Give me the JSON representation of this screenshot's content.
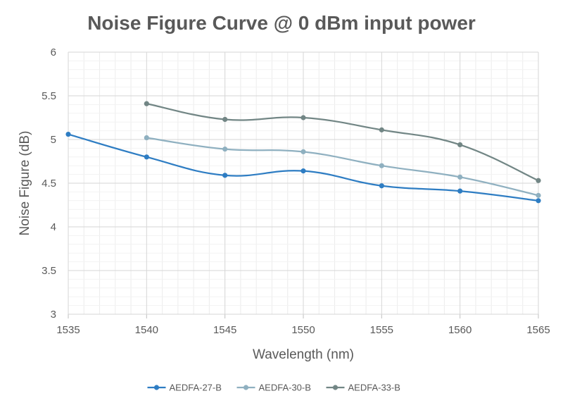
{
  "chart_data": {
    "type": "line",
    "title": "Noise Figure Curve @ 0 dBm input power",
    "xlabel": "Wavelength (nm)",
    "ylabel": "Noise Figure (dB)",
    "xlim": [
      1535,
      1565
    ],
    "ylim": [
      3,
      6
    ],
    "xticks": [
      "1535",
      "1540",
      "1545",
      "1550",
      "1555",
      "1560",
      "1565"
    ],
    "yticks": [
      "3",
      "3.5",
      "4",
      "4.5",
      "5",
      "5.5",
      "6"
    ],
    "grid": true,
    "minor_gridlines": true,
    "smooth": true,
    "legend_position": "bottom",
    "series": [
      {
        "name": "AEDFA-27-B",
        "color": "#2e7dc3",
        "x": [
          1535,
          1540,
          1545,
          1550,
          1555,
          1560,
          1565
        ],
        "values": [
          5.06,
          4.8,
          4.59,
          4.64,
          4.47,
          4.41,
          4.3
        ]
      },
      {
        "name": "AEDFA-30-B",
        "color": "#8fb0c0",
        "x": [
          1540,
          1545,
          1550,
          1555,
          1560,
          1565
        ],
        "values": [
          5.02,
          4.89,
          4.86,
          4.7,
          4.57,
          4.36
        ]
      },
      {
        "name": "AEDFA-33-B",
        "color": "#728685",
        "x": [
          1540,
          1545,
          1550,
          1555,
          1560,
          1565
        ],
        "values": [
          5.41,
          5.23,
          5.25,
          5.11,
          4.94,
          4.53
        ]
      }
    ]
  }
}
